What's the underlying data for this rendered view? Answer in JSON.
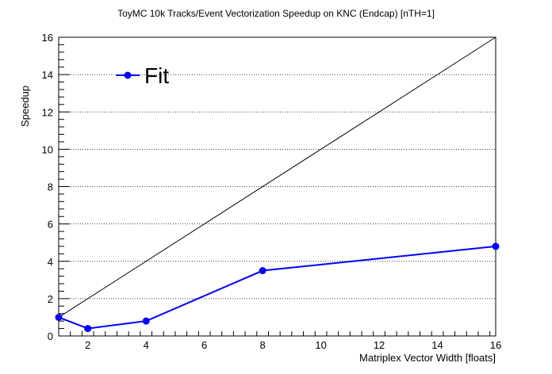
{
  "chart_data": {
    "type": "line",
    "title": "ToyMC 10k Tracks/Event Vectorization Speedup on KNC (Endcap) [nTH=1]",
    "xlabel": "Matriplex Vector Width [floats]",
    "ylabel": "Speedup",
    "xlim": [
      1,
      16
    ],
    "ylim": [
      0,
      16
    ],
    "x_ticks": [
      2,
      4,
      6,
      8,
      10,
      12,
      14,
      16
    ],
    "y_ticks": [
      0,
      2,
      4,
      6,
      8,
      10,
      12,
      14,
      16
    ],
    "grid": "horizontal-dotted",
    "legend_position": "top-left",
    "series": [
      {
        "name": "Fit",
        "color": "#0000ff",
        "marker": "circle",
        "x": [
          1,
          2,
          4,
          8,
          16
        ],
        "y": [
          1.0,
          0.4,
          0.8,
          3.5,
          4.8
        ]
      }
    ],
    "reference_line": {
      "color": "#000000",
      "x": [
        1,
        16
      ],
      "y": [
        1,
        16
      ]
    }
  }
}
